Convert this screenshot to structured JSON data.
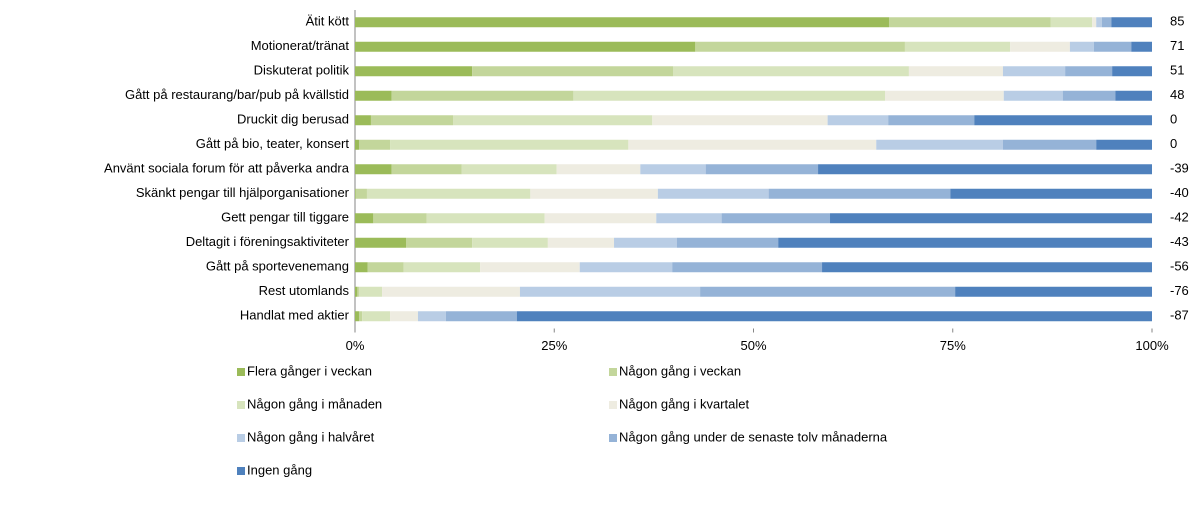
{
  "chart_data": {
    "type": "stacked_barh",
    "categories": [
      "Ätit kött",
      "Motionerat/tränat",
      "Diskuterat politik",
      "Gått på restaurang/bar/pub på kvällstid",
      "Druckit dig berusad",
      "Gått på bio, teater, konsert",
      "Använt sociala forum för att påverka andra",
      "Skänkt pengar till hjälporganisationer",
      "Gett pengar till tiggare",
      "Deltagit i föreningsaktiviteter ",
      "Gått på sportevenemang",
      "Rest utomlands",
      "Handlat med aktier"
    ],
    "balance": [
      85,
      71,
      51,
      48,
      0,
      0,
      -39,
      -40,
      -42,
      -43,
      -56,
      -76,
      -87
    ],
    "series": [
      {
        "name": "Flera gånger i veckan",
        "color": "#9bbb59",
        "values": [
          67,
          42.7,
          14.7,
          4.6,
          2.0,
          0.5,
          4.6,
          0.1,
          2.3,
          6.4,
          1.6,
          0.3,
          0.5
        ]
      },
      {
        "name": "Någon gång i veckan",
        "color": "#c3d69b",
        "values": [
          20.3,
          26.3,
          25.2,
          22.8,
          10.3,
          3.9,
          8.8,
          1.4,
          6.7,
          8.3,
          4.5,
          0.2,
          0.4
        ]
      },
      {
        "name": "Någon gång i månaden",
        "color": "#d7e4bd",
        "values": [
          5.2,
          13.2,
          29.6,
          39.1,
          25.0,
          29.9,
          11.9,
          20.5,
          14.8,
          9.5,
          9.6,
          2.9,
          3.5
        ]
      },
      {
        "name": "Någon gång i kvartalet",
        "color": "#eeece1",
        "values": [
          0.5,
          7.5,
          11.8,
          14.9,
          22.0,
          31.1,
          10.5,
          16.0,
          14.0,
          8.3,
          12.5,
          17.3,
          3.5
        ]
      },
      {
        "name": "Någon gång i halvåret",
        "color": "#b9cde5",
        "values": [
          0.7,
          3.0,
          7.8,
          7.4,
          7.6,
          15.9,
          8.2,
          13.9,
          8.2,
          7.9,
          11.6,
          22.6,
          3.5
        ]
      },
      {
        "name": "Någon gång under de senaste tolv månaderna",
        "color": "#95b3d7",
        "values": [
          1.2,
          4.7,
          5.9,
          6.6,
          10.8,
          11.7,
          14.1,
          22.8,
          13.6,
          12.7,
          18.8,
          32.0,
          8.9
        ]
      },
      {
        "name": "Ingen gång",
        "color": "#4f81bd",
        "values": [
          5.1,
          2.6,
          5.0,
          4.6,
          22.3,
          7.0,
          41.9,
          25.3,
          40.4,
          46.9,
          41.4,
          24.7,
          79.7
        ]
      }
    ],
    "xlim": [
      0,
      100
    ],
    "xticks": [
      {
        "value": 0,
        "label": "0%"
      },
      {
        "value": 25,
        "label": "25%"
      },
      {
        "value": 50,
        "label": "50%"
      },
      {
        "value": 75,
        "label": "75%"
      },
      {
        "value": 100,
        "label": "100%"
      }
    ],
    "legend": "bottom"
  }
}
